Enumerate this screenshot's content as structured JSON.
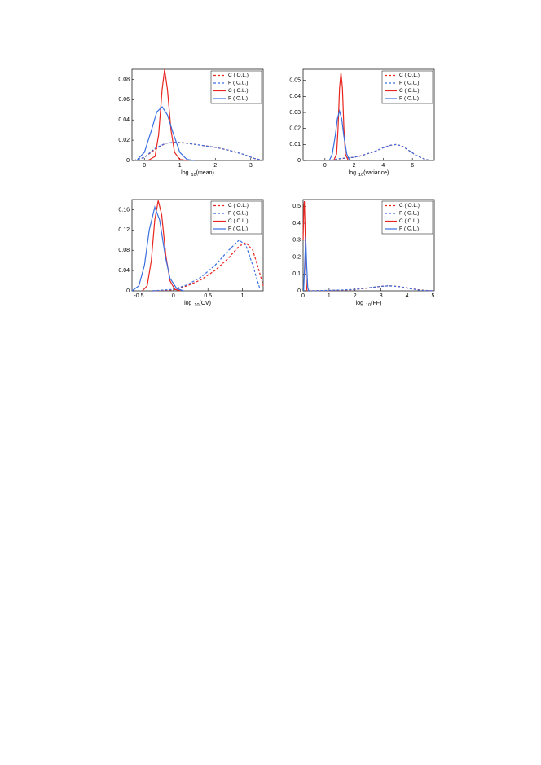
{
  "chart_data": [
    {
      "type": "line",
      "xlabel": [
        "log",
        "10",
        "(mean)"
      ],
      "xlim": [
        -0.35,
        3.35
      ],
      "xticks": [
        0,
        1,
        2,
        3
      ],
      "ylim": [
        0,
        0.09
      ],
      "yticks": [
        0,
        0.02,
        0.04,
        0.06,
        0.08
      ],
      "legend": "upper right",
      "series": [
        {
          "name": "C ( O.L.)",
          "color": "#e8261f",
          "dashed": true,
          "x": [
            -0.3,
            0,
            0.3,
            0.6,
            0.9,
            1.2,
            1.6,
            2.0,
            2.4,
            2.8,
            3.1,
            3.3
          ],
          "values": [
            0,
            0.003,
            0.011,
            0.017,
            0.018,
            0.017,
            0.015,
            0.013,
            0.01,
            0.006,
            0.002,
            0.0005
          ]
        },
        {
          "name": "P ( O.L.)",
          "color": "#3a6fe0",
          "dashed": true,
          "x": [
            -0.3,
            0,
            0.3,
            0.6,
            0.9,
            1.2,
            1.6,
            2.0,
            2.4,
            2.8,
            3.1,
            3.3
          ],
          "values": [
            0,
            0.003,
            0.012,
            0.017,
            0.018,
            0.017,
            0.015,
            0.013,
            0.01,
            0.006,
            0.002,
            0.0005
          ]
        },
        {
          "name": "C ( C.L.)",
          "color": "#e8261f",
          "dashed": false,
          "x": [
            0.1,
            0.3,
            0.4,
            0.5,
            0.57,
            0.65,
            0.75,
            0.85,
            1.0,
            1.2
          ],
          "values": [
            0,
            0.004,
            0.025,
            0.07,
            0.09,
            0.07,
            0.03,
            0.008,
            0.001,
            0
          ]
        },
        {
          "name": "P ( C.L.)",
          "color": "#3a6fe0",
          "dashed": false,
          "x": [
            -0.2,
            0,
            0.2,
            0.35,
            0.5,
            0.65,
            0.8,
            1.0,
            1.2,
            1.4
          ],
          "values": [
            0.001,
            0.008,
            0.03,
            0.048,
            0.053,
            0.045,
            0.028,
            0.008,
            0.001,
            0
          ]
        }
      ]
    },
    {
      "type": "line",
      "xlabel": [
        "log",
        "10",
        "(variance)"
      ],
      "xlim": [
        -1.5,
        7.5
      ],
      "xticks": [
        0,
        2,
        4,
        6
      ],
      "ylim": [
        0,
        0.057
      ],
      "yticks": [
        0,
        0.01,
        0.02,
        0.03,
        0.04,
        0.05
      ],
      "legend": "upper right",
      "series": [
        {
          "name": "C ( O.L.)",
          "color": "#e8261f",
          "dashed": true,
          "x": [
            0.4,
            1.0,
            1.5,
            2.0,
            2.5,
            3.0,
            3.5,
            4.0,
            4.5,
            4.9,
            5.3,
            5.8,
            6.3,
            6.8,
            7.2
          ],
          "values": [
            0,
            0.001,
            0.0015,
            0.002,
            0.003,
            0.0045,
            0.006,
            0.008,
            0.0095,
            0.01,
            0.009,
            0.006,
            0.003,
            0.001,
            0
          ]
        },
        {
          "name": "P ( O.L.)",
          "color": "#3a6fe0",
          "dashed": true,
          "x": [
            0.4,
            1.0,
            1.5,
            2.0,
            2.5,
            3.0,
            3.5,
            4.0,
            4.5,
            4.9,
            5.3,
            5.8,
            6.3,
            6.8,
            7.2
          ],
          "values": [
            0,
            0.0012,
            0.0016,
            0.002,
            0.003,
            0.0045,
            0.006,
            0.008,
            0.0095,
            0.01,
            0.009,
            0.006,
            0.003,
            0.001,
            0
          ]
        },
        {
          "name": "C ( C.L.)",
          "color": "#e8261f",
          "dashed": false,
          "x": [
            0.6,
            0.8,
            0.9,
            1.0,
            1.1,
            1.2,
            1.3,
            1.4,
            1.6
          ],
          "values": [
            0,
            0.004,
            0.02,
            0.045,
            0.055,
            0.045,
            0.02,
            0.004,
            0
          ]
        },
        {
          "name": "P ( C.L.)",
          "color": "#3a6fe0",
          "dashed": false,
          "x": [
            0.3,
            0.5,
            0.7,
            0.85,
            1.0,
            1.15,
            1.3,
            1.5,
            1.7
          ],
          "values": [
            0,
            0.004,
            0.015,
            0.026,
            0.031,
            0.026,
            0.015,
            0.004,
            0
          ]
        }
      ]
    },
    {
      "type": "line",
      "xlabel": [
        "log",
        "10",
        "(CV)"
      ],
      "xlim": [
        -0.6,
        1.3
      ],
      "xticks": [
        -0.5,
        0,
        0.5,
        1
      ],
      "ylim": [
        0,
        0.18
      ],
      "yticks": [
        0,
        0.04,
        0.08,
        0.12,
        0.16
      ],
      "legend": "upper right",
      "series": [
        {
          "name": "C ( O.L.)",
          "color": "#e8261f",
          "dashed": true,
          "x": [
            -0.3,
            0,
            0.2,
            0.4,
            0.6,
            0.8,
            0.95,
            1.05,
            1.15,
            1.25,
            1.3
          ],
          "values": [
            0,
            0.002,
            0.01,
            0.022,
            0.04,
            0.065,
            0.088,
            0.095,
            0.08,
            0.035,
            0.01
          ]
        },
        {
          "name": "P ( O.L.)",
          "color": "#3a6fe0",
          "dashed": true,
          "x": [
            -0.3,
            0,
            0.2,
            0.4,
            0.6,
            0.8,
            0.95,
            1.05,
            1.15,
            1.25
          ],
          "values": [
            0,
            0.003,
            0.012,
            0.027,
            0.05,
            0.08,
            0.1,
            0.09,
            0.05,
            0.005
          ]
        },
        {
          "name": "C ( C.L.)",
          "color": "#e8261f",
          "dashed": false,
          "x": [
            -0.45,
            -0.38,
            -0.32,
            -0.27,
            -0.22,
            -0.17,
            -0.11,
            -0.05,
            0.02,
            0.1
          ],
          "values": [
            0,
            0.01,
            0.06,
            0.14,
            0.178,
            0.15,
            0.07,
            0.02,
            0.003,
            0
          ]
        },
        {
          "name": "P ( C.L.)",
          "color": "#3a6fe0",
          "dashed": false,
          "x": [
            -0.6,
            -0.5,
            -0.42,
            -0.35,
            -0.27,
            -0.2,
            -0.12,
            -0.05,
            0.05,
            0.15
          ],
          "values": [
            0,
            0.01,
            0.05,
            0.12,
            0.165,
            0.14,
            0.07,
            0.025,
            0.004,
            0
          ]
        }
      ]
    },
    {
      "type": "line",
      "xlabel": [
        "log",
        "10",
        "(FF)"
      ],
      "xlim": [
        0,
        5.05
      ],
      "xticks": [
        0,
        1,
        2,
        3,
        4,
        5
      ],
      "ylim": [
        0,
        0.54
      ],
      "yticks": [
        0,
        0.1,
        0.2,
        0.3,
        0.4,
        0.5
      ],
      "legend": "upper right",
      "series": [
        {
          "name": "C ( O.L.)",
          "color": "#e8261f",
          "dashed": true,
          "x": [
            0.2,
            1.0,
            1.5,
            2.0,
            2.5,
            3.0,
            3.3,
            3.7,
            4.1,
            4.5,
            5.0
          ],
          "values": [
            0,
            0.002,
            0.004,
            0.008,
            0.017,
            0.027,
            0.03,
            0.026,
            0.015,
            0.005,
            0
          ]
        },
        {
          "name": "P ( O.L.)",
          "color": "#3a6fe0",
          "dashed": true,
          "x": [
            0.2,
            1.0,
            1.5,
            2.0,
            2.5,
            3.0,
            3.3,
            3.7,
            4.1,
            4.5,
            5.0
          ],
          "values": [
            0,
            0.003,
            0.005,
            0.009,
            0.018,
            0.027,
            0.03,
            0.025,
            0.014,
            0.004,
            0
          ]
        },
        {
          "name": "C ( C.L.)",
          "color": "#e8261f",
          "dashed": false,
          "x": [
            0,
            0.03,
            0.05,
            0.08,
            0.11,
            0.15
          ],
          "values": [
            0.3,
            0.5,
            0.53,
            0.35,
            0.08,
            0
          ]
        },
        {
          "name": "P ( C.L.)",
          "color": "#3a6fe0",
          "dashed": false,
          "x": [
            0.02,
            0.06,
            0.1,
            0.14,
            0.18,
            0.22
          ],
          "values": [
            0,
            0.15,
            0.32,
            0.15,
            0.02,
            0
          ]
        }
      ]
    }
  ]
}
